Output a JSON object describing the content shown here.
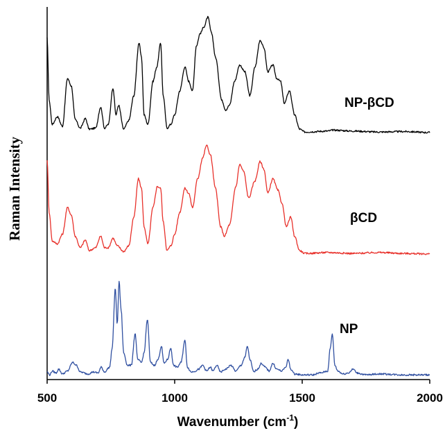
{
  "chart_data": {
    "type": "line",
    "xlabel": "Wavenumber (cm",
    "xlabel_sup": "-1",
    "xlabel_tail": ")",
    "ylabel": "Raman Intensity",
    "xlim": [
      500,
      2000
    ],
    "xticks": [
      "500",
      "1000",
      "1500",
      "2000"
    ],
    "xtick_values": [
      500,
      1000,
      1500,
      2000
    ],
    "grid": false,
    "series": [
      {
        "name": "NP-βCD",
        "color": "#000000",
        "offset": 2.0,
        "baseline": 0.02,
        "points": [
          [
            500,
            1.0
          ],
          [
            508,
            0.35
          ],
          [
            520,
            0.1
          ],
          [
            540,
            0.18
          ],
          [
            560,
            0.08
          ],
          [
            580,
            0.58
          ],
          [
            595,
            0.5
          ],
          [
            610,
            0.15
          ],
          [
            630,
            0.06
          ],
          [
            650,
            0.16
          ],
          [
            665,
            0.05
          ],
          [
            690,
            0.06
          ],
          [
            710,
            0.28
          ],
          [
            725,
            0.06
          ],
          [
            740,
            0.1
          ],
          [
            758,
            0.48
          ],
          [
            770,
            0.2
          ],
          [
            780,
            0.3
          ],
          [
            800,
            0.05
          ],
          [
            820,
            0.14
          ],
          [
            840,
            0.4
          ],
          [
            860,
            0.95
          ],
          [
            870,
            0.8
          ],
          [
            880,
            0.2
          ],
          [
            895,
            0.1
          ],
          [
            915,
            0.55
          ],
          [
            930,
            0.7
          ],
          [
            945,
            0.95
          ],
          [
            955,
            0.4
          ],
          [
            970,
            0.06
          ],
          [
            985,
            0.1
          ],
          [
            1000,
            0.2
          ],
          [
            1020,
            0.45
          ],
          [
            1040,
            0.7
          ],
          [
            1055,
            0.55
          ],
          [
            1070,
            0.45
          ],
          [
            1085,
            0.92
          ],
          [
            1100,
            1.05
          ],
          [
            1115,
            1.12
          ],
          [
            1130,
            1.22
          ],
          [
            1145,
            1.05
          ],
          [
            1160,
            0.8
          ],
          [
            1185,
            0.35
          ],
          [
            1200,
            0.25
          ],
          [
            1215,
            0.3
          ],
          [
            1235,
            0.55
          ],
          [
            1255,
            0.72
          ],
          [
            1275,
            0.65
          ],
          [
            1295,
            0.4
          ],
          [
            1315,
            0.7
          ],
          [
            1335,
            0.98
          ],
          [
            1350,
            0.9
          ],
          [
            1365,
            0.65
          ],
          [
            1385,
            0.72
          ],
          [
            1400,
            0.58
          ],
          [
            1415,
            0.55
          ],
          [
            1430,
            0.32
          ],
          [
            1450,
            0.45
          ],
          [
            1470,
            0.2
          ],
          [
            1490,
            0.05
          ],
          [
            1510,
            0.02
          ],
          [
            1600,
            0.03
          ],
          [
            1620,
            0.04
          ],
          [
            1700,
            0.03
          ],
          [
            1800,
            0.02
          ],
          [
            1900,
            0.025
          ],
          [
            2000,
            0.015
          ]
        ]
      },
      {
        "name": "βCD",
        "color": "#e8302a",
        "offset": 1.0,
        "baseline": 0.02,
        "points": [
          [
            500,
            1.0
          ],
          [
            508,
            0.45
          ],
          [
            520,
            0.15
          ],
          [
            540,
            0.12
          ],
          [
            560,
            0.22
          ],
          [
            580,
            0.5
          ],
          [
            595,
            0.42
          ],
          [
            610,
            0.2
          ],
          [
            630,
            0.08
          ],
          [
            650,
            0.16
          ],
          [
            665,
            0.05
          ],
          [
            690,
            0.08
          ],
          [
            710,
            0.2
          ],
          [
            725,
            0.08
          ],
          [
            740,
            0.08
          ],
          [
            758,
            0.18
          ],
          [
            775,
            0.1
          ],
          [
            800,
            0.04
          ],
          [
            820,
            0.1
          ],
          [
            840,
            0.4
          ],
          [
            858,
            0.8
          ],
          [
            870,
            0.7
          ],
          [
            880,
            0.3
          ],
          [
            895,
            0.12
          ],
          [
            915,
            0.5
          ],
          [
            932,
            0.72
          ],
          [
            945,
            0.7
          ],
          [
            955,
            0.35
          ],
          [
            970,
            0.05
          ],
          [
            985,
            0.1
          ],
          [
            1000,
            0.22
          ],
          [
            1020,
            0.45
          ],
          [
            1040,
            0.7
          ],
          [
            1055,
            0.65
          ],
          [
            1070,
            0.5
          ],
          [
            1090,
            0.8
          ],
          [
            1110,
            1.02
          ],
          [
            1125,
            1.15
          ],
          [
            1140,
            1.05
          ],
          [
            1160,
            0.7
          ],
          [
            1180,
            0.3
          ],
          [
            1195,
            0.2
          ],
          [
            1215,
            0.32
          ],
          [
            1240,
            0.72
          ],
          [
            1255,
            0.95
          ],
          [
            1270,
            0.88
          ],
          [
            1290,
            0.6
          ],
          [
            1315,
            0.78
          ],
          [
            1335,
            0.98
          ],
          [
            1350,
            0.9
          ],
          [
            1365,
            0.65
          ],
          [
            1385,
            0.8
          ],
          [
            1405,
            0.68
          ],
          [
            1420,
            0.55
          ],
          [
            1438,
            0.3
          ],
          [
            1455,
            0.4
          ],
          [
            1470,
            0.2
          ],
          [
            1490,
            0.05
          ],
          [
            1510,
            0.02
          ],
          [
            1600,
            0.03
          ],
          [
            1700,
            0.02
          ],
          [
            1800,
            0.03
          ],
          [
            1900,
            0.02
          ],
          [
            2000,
            0.015
          ]
        ]
      },
      {
        "name": "NP",
        "color": "#2f4fa0",
        "offset": 0.0,
        "baseline": 0.02,
        "points": [
          [
            500,
            0.05
          ],
          [
            510,
            0.02
          ],
          [
            520,
            0.06
          ],
          [
            535,
            0.04
          ],
          [
            545,
            0.08
          ],
          [
            560,
            0.03
          ],
          [
            580,
            0.06
          ],
          [
            600,
            0.15
          ],
          [
            615,
            0.12
          ],
          [
            630,
            0.05
          ],
          [
            660,
            0.03
          ],
          [
            680,
            0.05
          ],
          [
            700,
            0.04
          ],
          [
            712,
            0.1
          ],
          [
            725,
            0.05
          ],
          [
            745,
            0.1
          ],
          [
            755,
            0.3
          ],
          [
            767,
            0.92
          ],
          [
            775,
            0.55
          ],
          [
            782,
            1.0
          ],
          [
            790,
            0.7
          ],
          [
            800,
            0.25
          ],
          [
            815,
            0.12
          ],
          [
            830,
            0.12
          ],
          [
            845,
            0.45
          ],
          [
            855,
            0.18
          ],
          [
            870,
            0.15
          ],
          [
            880,
            0.25
          ],
          [
            893,
            0.6
          ],
          [
            905,
            0.15
          ],
          [
            920,
            0.12
          ],
          [
            935,
            0.18
          ],
          [
            948,
            0.32
          ],
          [
            958,
            0.14
          ],
          [
            972,
            0.18
          ],
          [
            985,
            0.3
          ],
          [
            995,
            0.12
          ],
          [
            1010,
            0.1
          ],
          [
            1025,
            0.15
          ],
          [
            1040,
            0.38
          ],
          [
            1050,
            0.1
          ],
          [
            1065,
            0.05
          ],
          [
            1080,
            0.06
          ],
          [
            1095,
            0.08
          ],
          [
            1110,
            0.12
          ],
          [
            1125,
            0.06
          ],
          [
            1140,
            0.1
          ],
          [
            1150,
            0.06
          ],
          [
            1165,
            0.12
          ],
          [
            1180,
            0.05
          ],
          [
            1200,
            0.08
          ],
          [
            1220,
            0.12
          ],
          [
            1240,
            0.06
          ],
          [
            1260,
            0.12
          ],
          [
            1275,
            0.2
          ],
          [
            1285,
            0.32
          ],
          [
            1295,
            0.18
          ],
          [
            1310,
            0.05
          ],
          [
            1325,
            0.08
          ],
          [
            1340,
            0.14
          ],
          [
            1355,
            0.1
          ],
          [
            1370,
            0.06
          ],
          [
            1385,
            0.14
          ],
          [
            1400,
            0.08
          ],
          [
            1420,
            0.06
          ],
          [
            1435,
            0.1
          ],
          [
            1445,
            0.18
          ],
          [
            1455,
            0.08
          ],
          [
            1470,
            0.03
          ],
          [
            1500,
            0.02
          ],
          [
            1540,
            0.02
          ],
          [
            1570,
            0.04
          ],
          [
            1600,
            0.06
          ],
          [
            1610,
            0.3
          ],
          [
            1618,
            0.45
          ],
          [
            1628,
            0.12
          ],
          [
            1640,
            0.06
          ],
          [
            1660,
            0.03
          ],
          [
            1680,
            0.04
          ],
          [
            1700,
            0.08
          ],
          [
            1715,
            0.04
          ],
          [
            1750,
            0.02
          ],
          [
            1800,
            0.03
          ],
          [
            1900,
            0.02
          ],
          [
            2000,
            0.02
          ]
        ]
      }
    ]
  }
}
